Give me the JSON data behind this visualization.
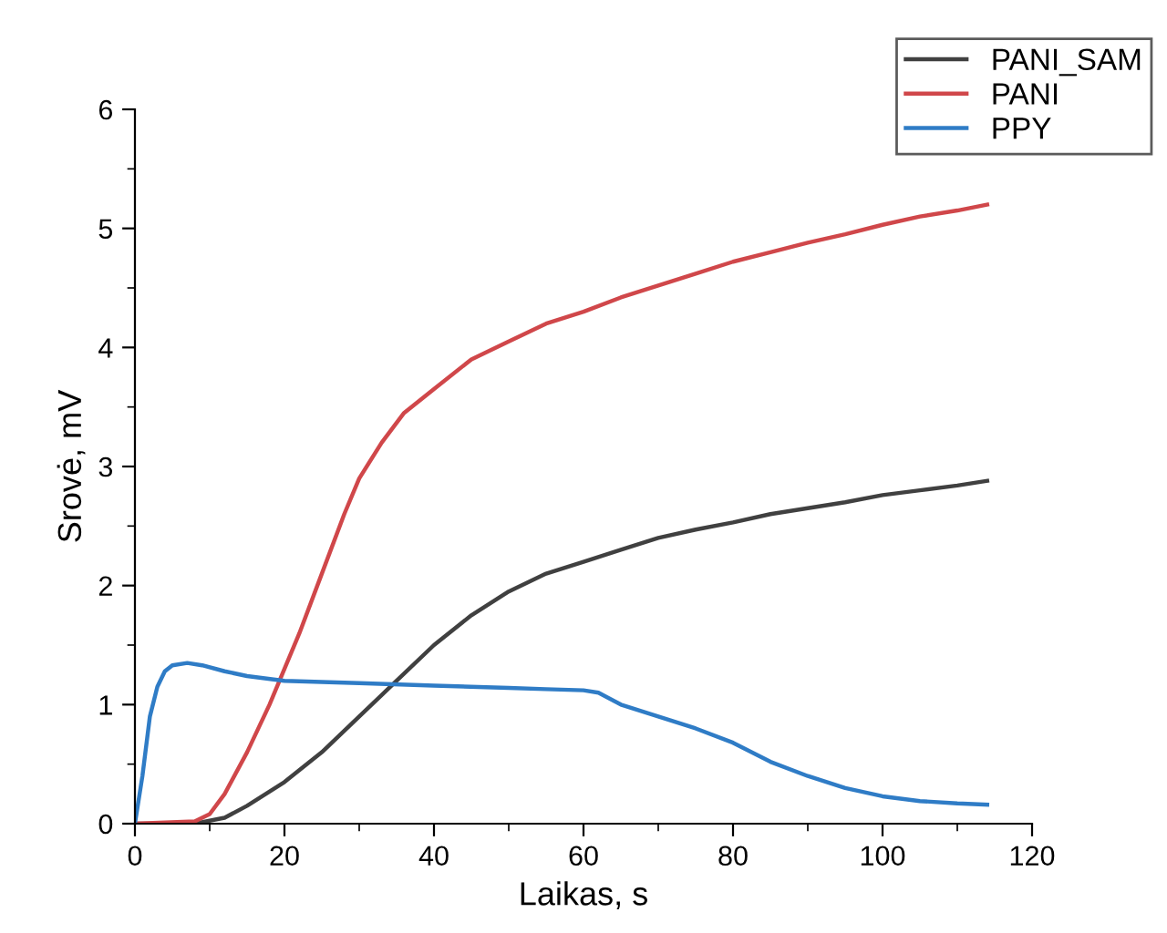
{
  "chart_data": {
    "type": "line",
    "xlabel": "Laikas, s",
    "ylabel": "Srovė, mV",
    "xlim": [
      0,
      120
    ],
    "xticks": [
      0,
      20,
      40,
      60,
      80,
      100,
      120
    ],
    "ylim": [
      0,
      6
    ],
    "yticks": [
      0,
      1,
      2,
      3,
      4,
      5,
      6
    ],
    "grid": false,
    "legend": "top right",
    "marker": "none",
    "line_style": "solid",
    "series": [
      {
        "name": "PANI_SAM",
        "color": "#404040",
        "x": [
          0,
          8,
          12,
          15,
          20,
          25,
          30,
          35,
          40,
          45,
          50,
          55,
          60,
          65,
          70,
          75,
          80,
          85,
          90,
          95,
          100,
          105,
          110,
          114
        ],
        "values": [
          0,
          0,
          0.05,
          0.15,
          0.35,
          0.6,
          0.9,
          1.2,
          1.5,
          1.75,
          1.95,
          2.1,
          2.2,
          2.3,
          2.4,
          2.47,
          2.53,
          2.6,
          2.65,
          2.7,
          2.76,
          2.8,
          2.84,
          2.88
        ]
      },
      {
        "name": "PANI",
        "color": "#d0474a",
        "x": [
          0,
          8,
          10,
          12,
          15,
          18,
          20,
          22,
          25,
          28,
          30,
          33,
          36,
          40,
          45,
          50,
          55,
          60,
          65,
          70,
          75,
          80,
          85,
          90,
          95,
          100,
          105,
          110,
          114
        ],
        "values": [
          0,
          0.02,
          0.08,
          0.25,
          0.6,
          1.0,
          1.3,
          1.6,
          2.1,
          2.6,
          2.9,
          3.2,
          3.45,
          3.65,
          3.9,
          4.05,
          4.2,
          4.3,
          4.42,
          4.52,
          4.62,
          4.72,
          4.8,
          4.88,
          4.95,
          5.03,
          5.1,
          5.15,
          5.2
        ]
      },
      {
        "name": "PPY",
        "color": "#2f7cc6",
        "x": [
          0,
          1,
          2,
          3,
          4,
          5,
          7,
          9,
          12,
          15,
          20,
          30,
          40,
          50,
          55,
          60,
          62,
          65,
          70,
          75,
          80,
          85,
          90,
          95,
          100,
          105,
          110,
          114
        ],
        "values": [
          0,
          0.4,
          0.9,
          1.15,
          1.28,
          1.33,
          1.35,
          1.33,
          1.28,
          1.24,
          1.2,
          1.18,
          1.16,
          1.14,
          1.13,
          1.12,
          1.1,
          1.0,
          0.9,
          0.8,
          0.68,
          0.52,
          0.4,
          0.3,
          0.23,
          0.19,
          0.17,
          0.16
        ]
      }
    ]
  }
}
